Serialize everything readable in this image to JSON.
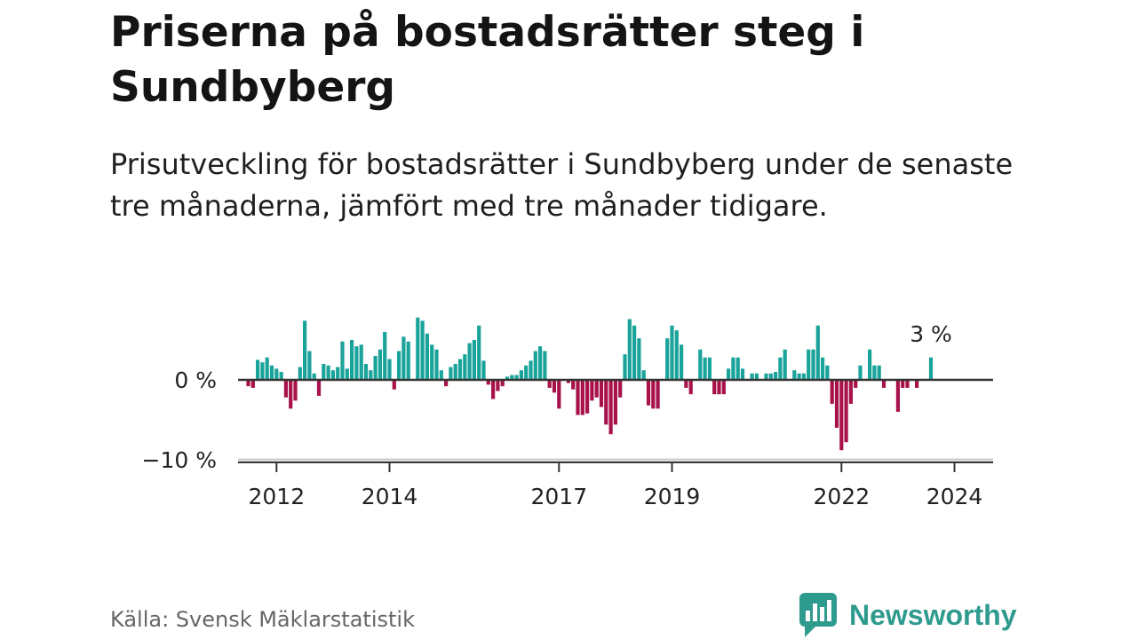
{
  "title": "Priserna på bostadsrätter steg i Sundbyberg",
  "subtitle": "Prisutveckling för bostadsrätter i Sundbyberg under de senaste tre månaderna, jämfört med tre månader tidigare.",
  "source": "Källa: Svensk Mäklarstatistik",
  "brand": "Newsworthy",
  "colors": {
    "positive": "#1aa39a",
    "negative": "#a8124a",
    "brand": "#2f9a8e"
  },
  "chart_data": {
    "type": "bar",
    "title": "Priserna på bostadsrätter steg i Sundbyberg",
    "xlabel": "",
    "ylabel": "",
    "ylim": [
      -10,
      8
    ],
    "y_ticks": [
      0,
      -10
    ],
    "y_tick_labels": [
      "0 %",
      "−10 %"
    ],
    "x_start": "2011-06",
    "x_step": "month",
    "x_ticks": [
      "2012",
      "2014",
      "2017",
      "2019",
      "2022",
      "2024"
    ],
    "x_tick_months": [
      6,
      30,
      66,
      90,
      126,
      150
    ],
    "last_value_label": "3 %",
    "values": [
      -0.8,
      -1.0,
      2.5,
      2.2,
      2.8,
      1.8,
      1.4,
      1.0,
      -2.2,
      -3.6,
      -2.6,
      1.6,
      7.4,
      3.6,
      0.8,
      -2.0,
      2.0,
      1.8,
      1.2,
      1.6,
      4.8,
      1.4,
      5.0,
      4.2,
      4.4,
      2.0,
      1.2,
      3.0,
      3.8,
      6.0,
      2.6,
      -1.2,
      3.6,
      5.4,
      4.8,
      0.0,
      7.8,
      7.4,
      5.8,
      4.4,
      3.8,
      1.2,
      -0.8,
      1.6,
      2.0,
      2.6,
      3.2,
      4.6,
      5.0,
      6.8,
      2.4,
      -0.6,
      -2.4,
      -1.4,
      -0.8,
      0.4,
      0.6,
      0.6,
      1.2,
      1.8,
      2.4,
      3.6,
      4.2,
      3.6,
      -1.0,
      -1.6,
      -3.6,
      0.0,
      -0.4,
      -1.2,
      -4.4,
      -4.4,
      -4.2,
      -2.6,
      -2.2,
      -3.4,
      -5.6,
      -6.8,
      -5.6,
      -2.2,
      3.2,
      7.6,
      6.8,
      5.2,
      1.2,
      -3.2,
      -3.6,
      -3.6,
      0.0,
      5.2,
      6.8,
      6.2,
      4.4,
      -1.0,
      -1.8,
      0.0,
      3.8,
      2.8,
      2.8,
      -1.8,
      -1.8,
      -1.8,
      1.4,
      2.8,
      2.8,
      1.4,
      0.0,
      0.8,
      0.8,
      0.0,
      0.8,
      0.8,
      1.0,
      2.8,
      3.8,
      0.0,
      1.2,
      0.8,
      0.8,
      3.8,
      3.8,
      6.8,
      2.8,
      1.8,
      -3.0,
      -6.0,
      -8.8,
      -7.8,
      -3.0,
      -1.0,
      1.8,
      0.0,
      3.8,
      1.8,
      1.8,
      -1.0,
      0.0,
      0.0,
      -4.0,
      -1.0,
      -1.0,
      0.0,
      -1.0,
      0.0,
      0.0,
      2.8
    ]
  }
}
